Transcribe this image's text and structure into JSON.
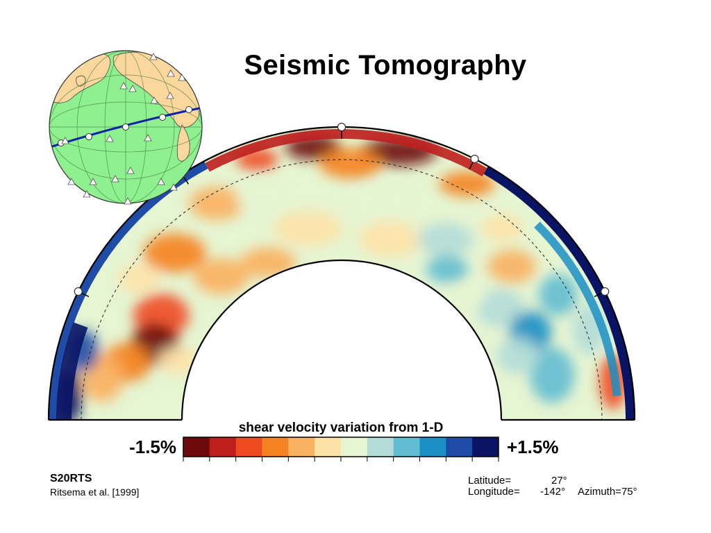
{
  "page": {
    "title": "Seismic Tomography"
  },
  "chart_data": {
    "type": "heatmap",
    "title": "Seismic Tomography",
    "projection": "great-circle cross-section (half annulus, surface to core-mantle boundary)",
    "colorbar": {
      "label": "shear velocity variation from 1-D",
      "min_label": "-1.5%",
      "max_label": "+1.5%",
      "range": [
        -1.5,
        1.5
      ],
      "unit": "%",
      "colors": [
        "#6e0a0a",
        "#be1e1e",
        "#ee4b23",
        "#f58220",
        "#f9b061",
        "#fde2a8",
        "#e6f5d2",
        "#b3dcd8",
        "#62bcd2",
        "#1b8fc4",
        "#1f4ca6",
        "#0a1464"
      ]
    },
    "model": "S20RTS",
    "citation": "Ritsema et al. [1999]",
    "section": {
      "latitude_label": "Latitude=",
      "latitude": "27°",
      "longitude_label": "Longitude=",
      "longitude": "-142°",
      "azimuth": "Azimuth=75°"
    },
    "grid": false,
    "legend": "bottom-center",
    "inset_globe": true
  }
}
